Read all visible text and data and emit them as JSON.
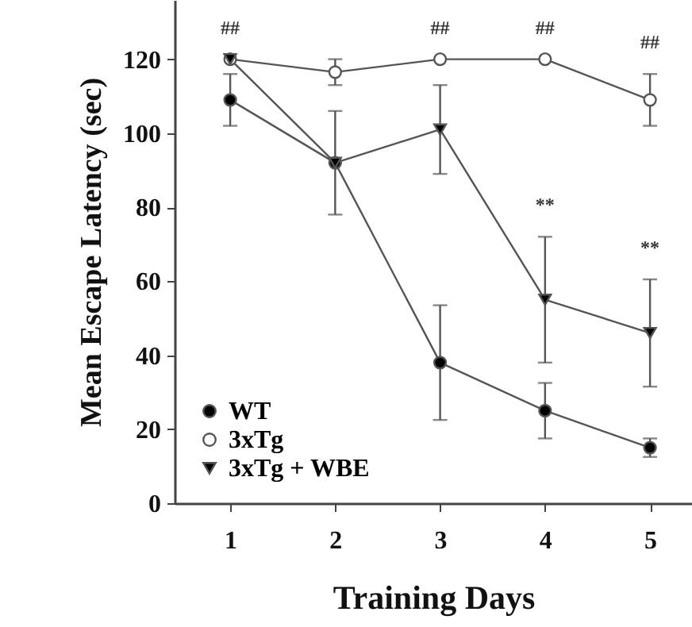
{
  "chart_data": {
    "type": "line",
    "xlabel": "Training Days",
    "ylabel": "Mean Escape Latency (sec)",
    "x": [
      1,
      2,
      3,
      4,
      5
    ],
    "xlim": [
      0.47,
      5.4
    ],
    "xticks": [
      1,
      2,
      3,
      4,
      5
    ],
    "ylim": [
      0,
      136
    ],
    "yticks": [
      0,
      20,
      40,
      60,
      80,
      100,
      120
    ],
    "series": [
      {
        "name": "WT",
        "color": "#555555",
        "marker": "circle",
        "values": [
          109,
          92,
          38,
          25,
          15
        ],
        "errors": [
          7,
          null,
          15.5,
          7.5,
          2.5
        ]
      },
      {
        "name": "3xTg",
        "color": "#555555",
        "marker": "circle",
        "colors": [
          "#ffffff",
          "#ffffff",
          "#ffffff",
          "#ffffff",
          "#ffffff"
        ],
        "values": [
          120,
          116.5,
          120,
          120,
          109
        ],
        "errors": [
          null,
          3.5,
          null,
          null,
          7
        ]
      },
      {
        "name": "3xTg + WBE",
        "color": "#555555",
        "marker": "triangle",
        "values": [
          120,
          92,
          101,
          55,
          46
        ],
        "errors": [
          null,
          14,
          [
            89,
            113
          ],
          17,
          14.5
        ]
      }
    ],
    "annotations": [
      {
        "text": "##",
        "x": 1,
        "y": 120
      },
      {
        "text": "##",
        "x": 3,
        "y": 120
      },
      {
        "text": "##",
        "x": 4,
        "y": 120
      },
      {
        "text": "##",
        "x": 5,
        "y": 116
      },
      {
        "text": "**",
        "x": 4,
        "y": 72
      },
      {
        "text": "**",
        "x": 5,
        "y": 60.5
      }
    ],
    "legend": "bottom left",
    "grid": false,
    "line_style": "solid"
  }
}
